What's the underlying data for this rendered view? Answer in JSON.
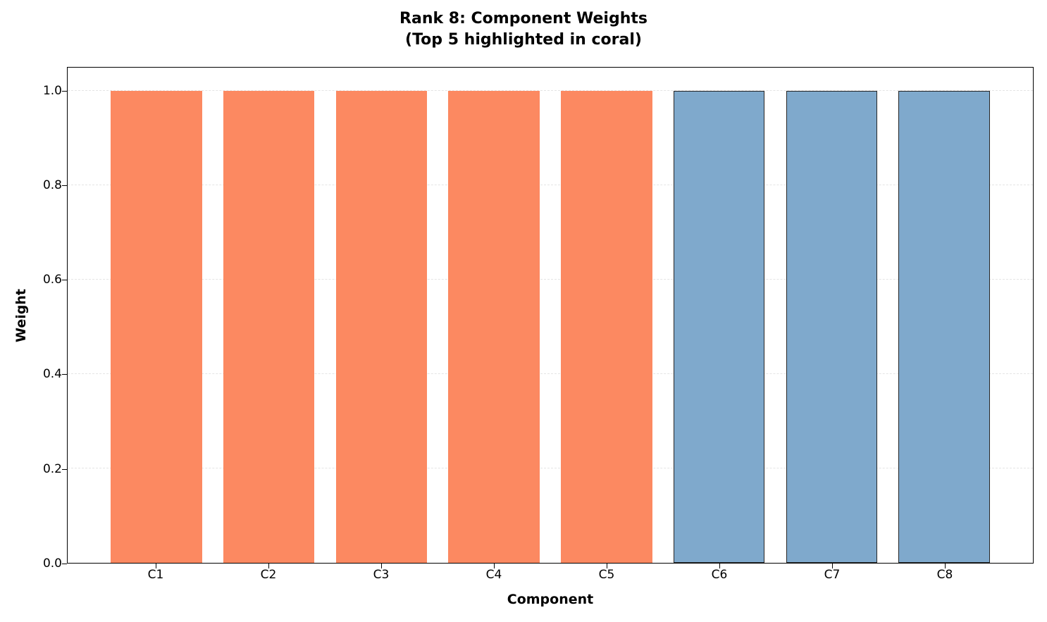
{
  "title": {
    "line1": "Rank 8: Component Weights",
    "line2": "(Top 5 highlighted in coral)"
  },
  "chart_data": {
    "type": "bar",
    "title": "Rank 8: Component Weights (Top 5 highlighted in coral)",
    "categories": [
      "C1",
      "C2",
      "C3",
      "C4",
      "C5",
      "C6",
      "C7",
      "C8"
    ],
    "values": [
      1.0,
      1.0,
      1.0,
      1.0,
      1.0,
      1.0,
      1.0,
      1.0
    ],
    "bar_colors": [
      "coral",
      "coral",
      "coral",
      "coral",
      "coral",
      "blue",
      "blue",
      "blue"
    ],
    "highlighted_count": 5,
    "colors": {
      "coral": "#FC8961",
      "blue": "#7FA9CC",
      "blue_edge": "#262626"
    },
    "xlabel": "Component",
    "ylabel": "Weight",
    "ylim": [
      0,
      1.05
    ],
    "yticks": [
      0.0,
      0.2,
      0.4,
      0.6,
      0.8,
      1.0
    ],
    "ytick_labels": [
      "0.0",
      "0.2",
      "0.4",
      "0.6",
      "0.8",
      "1.0"
    ],
    "grid": "horizontal-dashed",
    "legend": "none"
  }
}
